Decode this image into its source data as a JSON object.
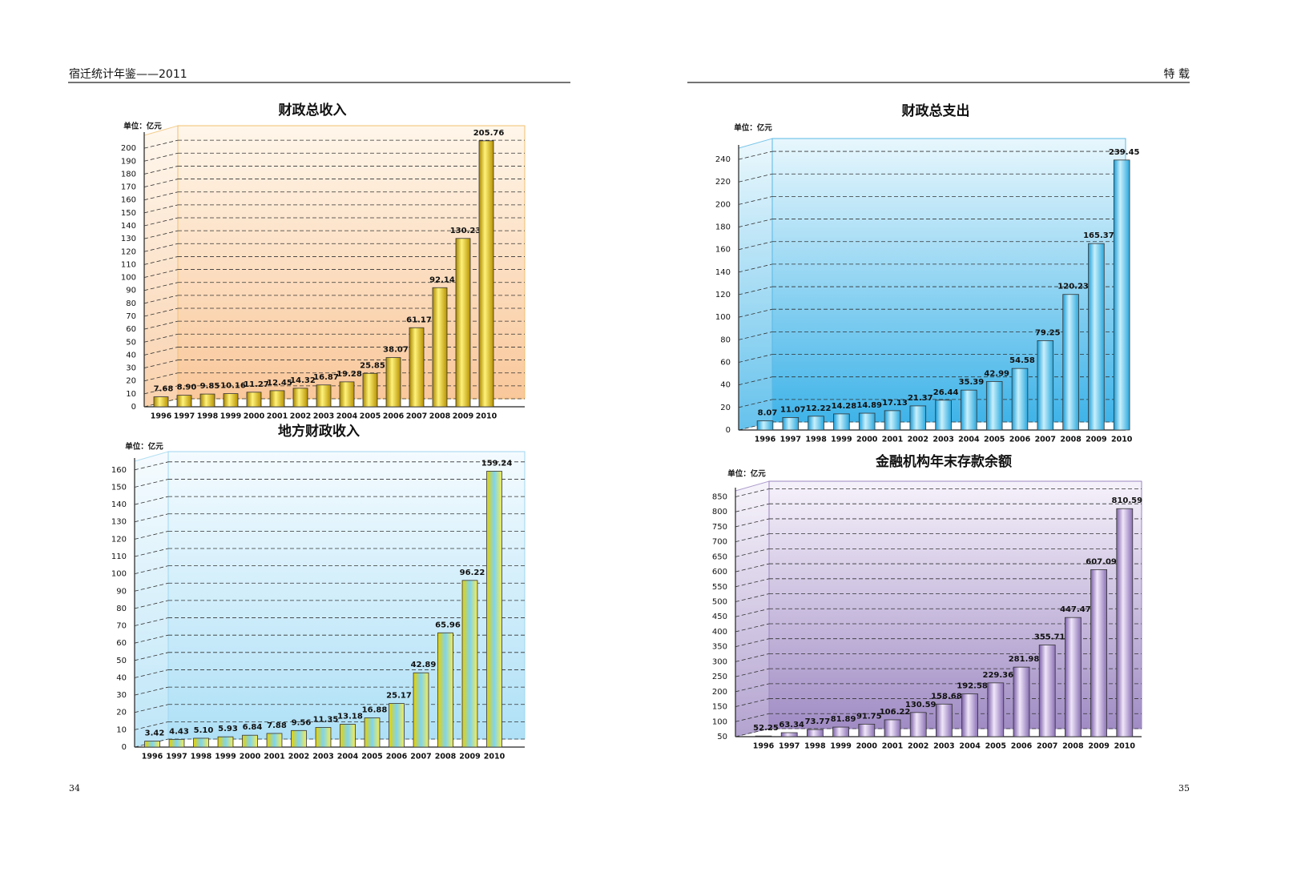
{
  "page": {
    "header_left": "宿迁统计年鉴——2011",
    "header_right": "特 载",
    "page_left": "34",
    "page_right": "35"
  },
  "chart_data": [
    {
      "type": "bar",
      "title": "财政总收入",
      "y_label": "单位：亿元",
      "color": "#e6c200",
      "categories": [
        "1996",
        "1997",
        "1998",
        "1999",
        "2000",
        "2001",
        "2002",
        "2003",
        "2004",
        "2005",
        "2006",
        "2007",
        "2008",
        "2009",
        "2010"
      ],
      "values": [
        7.68,
        8.9,
        9.85,
        10.16,
        11.27,
        12.45,
        14.32,
        16.87,
        19.28,
        25.85,
        38.07,
        61.17,
        92.14,
        130.23,
        205.76
      ],
      "value_labels": [
        "7.68",
        "8.90",
        "9.85",
        "10.16",
        "11.27",
        "12.45",
        "14.32",
        "16.87",
        "19.28",
        "25.85",
        "38.07",
        "61.17",
        "92.14",
        "130.23",
        "205.76"
      ],
      "ylim": [
        0,
        210
      ],
      "yticks": [
        0,
        10,
        20,
        30,
        40,
        50,
        60,
        70,
        80,
        90,
        100,
        110,
        120,
        130,
        140,
        150,
        160,
        170,
        180,
        190,
        200
      ],
      "grid": true
    },
    {
      "type": "bar",
      "title": "地方财政收入",
      "y_label": "单位：亿元",
      "color": "#f2e23a",
      "categories": [
        "1996",
        "1997",
        "1998",
        "1999",
        "2000",
        "2001",
        "2002",
        "2003",
        "2004",
        "2005",
        "2006",
        "2007",
        "2008",
        "2009",
        "2010"
      ],
      "values": [
        3.42,
        4.43,
        5.1,
        5.93,
        6.84,
        7.88,
        9.56,
        11.35,
        13.18,
        16.88,
        25.17,
        42.89,
        65.96,
        96.22,
        159.24
      ],
      "value_labels": [
        "3.42",
        "4.43",
        "5.10",
        "5.93",
        "6.84",
        "7.88",
        "9.56",
        "11.35",
        "13.18",
        "16.88",
        "25.17",
        "42.89",
        "65.96",
        "96.22",
        "159.24"
      ],
      "ylim": [
        0,
        165
      ],
      "yticks": [
        0,
        10,
        20,
        30,
        40,
        50,
        60,
        70,
        80,
        90,
        100,
        110,
        120,
        130,
        140,
        150,
        160
      ],
      "grid": true
    },
    {
      "type": "bar",
      "title": "财政总支出",
      "y_label": "单位：亿元",
      "color": "#4cc3ec",
      "categories": [
        "1996",
        "1997",
        "1998",
        "1999",
        "2000",
        "2001",
        "2002",
        "2003",
        "2004",
        "2005",
        "2006",
        "2007",
        "2008",
        "2009",
        "2010"
      ],
      "values": [
        8.07,
        11.07,
        12.22,
        14.28,
        14.89,
        17.13,
        21.37,
        26.44,
        35.39,
        42.99,
        54.58,
        79.25,
        120.23,
        165.37,
        239.45
      ],
      "value_labels": [
        "8.07",
        "11.07",
        "12.22",
        "14.28",
        "14.89",
        "17.13",
        "21.37",
        "26.44",
        "35.39",
        "42.99",
        "54.58",
        "79.25",
        "120.23",
        "165.37",
        "239.45"
      ],
      "ylim": [
        0,
        250
      ],
      "yticks": [
        0,
        20,
        40,
        60,
        80,
        100,
        120,
        140,
        160,
        180,
        200,
        220,
        240
      ],
      "grid": true
    },
    {
      "type": "bar",
      "title": "金融机构年末存款余额",
      "y_label": "单位：亿元",
      "color": "#b39ad2",
      "categories": [
        "1996",
        "1997",
        "1998",
        "1999",
        "2000",
        "2001",
        "2002",
        "2003",
        "2004",
        "2005",
        "2006",
        "2007",
        "2008",
        "2009",
        "2010"
      ],
      "values": [
        52.25,
        63.34,
        73.77,
        81.89,
        91.75,
        106.22,
        130.59,
        158.68,
        192.58,
        229.36,
        281.98,
        355.71,
        447.47,
        607.09,
        810.59
      ],
      "value_labels": [
        "52.25",
        "63.34",
        "73.77",
        "81.89",
        "91.75",
        "106.22",
        "130.59",
        "158.68",
        "192.58",
        "229.36",
        "281.98",
        "355.71",
        "447.47",
        "607.09",
        "810.59"
      ],
      "ylim": [
        50,
        870
      ],
      "yticks": [
        50,
        100,
        150,
        200,
        250,
        300,
        350,
        400,
        450,
        500,
        550,
        600,
        650,
        700,
        750,
        800,
        850
      ],
      "grid": true
    }
  ]
}
